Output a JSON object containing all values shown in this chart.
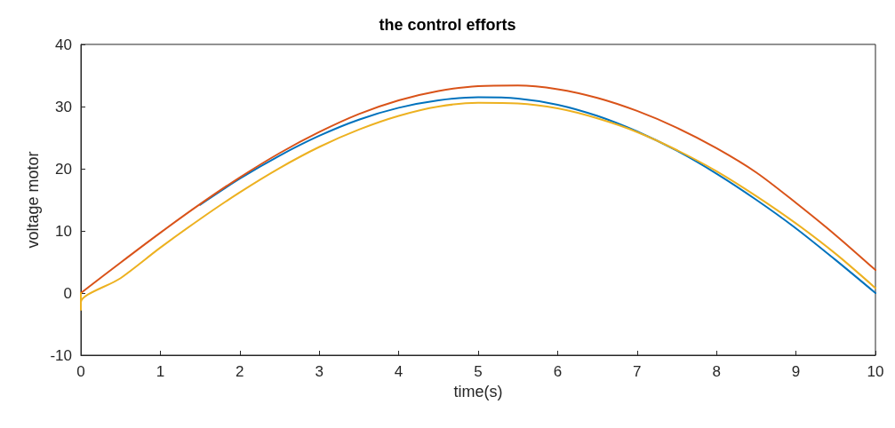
{
  "chart_data": {
    "type": "line",
    "title": "the control efforts",
    "xlabel": "time(s)",
    "ylabel": "voltage motor",
    "x": [
      0,
      0.5,
      1,
      1.5,
      2,
      2.5,
      3,
      3.5,
      4,
      4.5,
      5,
      5.5,
      6,
      6.5,
      7,
      7.5,
      8,
      8.5,
      9,
      9.5,
      10
    ],
    "series": [
      {
        "color": "#0072bd",
        "values": [
          null,
          null,
          null,
          14.2,
          18.4,
          22.1,
          25.3,
          27.9,
          29.8,
          31.0,
          31.5,
          31.3,
          30.3,
          28.5,
          26.0,
          22.9,
          19.2,
          15.0,
          10.4,
          5.3,
          0
        ]
      },
      {
        "color": "#d95319",
        "values": [
          0,
          4.9,
          9.7,
          14.3,
          18.6,
          22.5,
          25.9,
          28.8,
          31.0,
          32.5,
          33.3,
          33.4,
          32.8,
          31.4,
          29.3,
          26.6,
          23.3,
          19.4,
          14.5,
          9.3,
          3.7
        ]
      },
      {
        "color": "#edb120",
        "x": [
          0,
          0,
          0,
          0.5,
          1,
          1.5,
          2,
          2.5,
          3,
          3.5,
          4,
          4.5,
          5,
          5.5,
          6,
          6.5,
          7,
          7.5,
          8,
          8.5,
          9,
          9.5,
          10
        ],
        "values": [
          0,
          -2.7,
          -1.5,
          2.4,
          7.3,
          11.9,
          16.2,
          20.1,
          23.5,
          26.3,
          28.5,
          30.0,
          30.6,
          30.5,
          29.7,
          28.1,
          25.9,
          23.0,
          19.6,
          15.6,
          11.2,
          6.3,
          0.8
        ]
      }
    ],
    "xlim": [
      0,
      10
    ],
    "xticks": [
      0,
      1,
      2,
      3,
      4,
      5,
      6,
      7,
      8,
      9,
      10
    ],
    "ylim": [
      -10,
      40
    ],
    "yticks": [
      -10,
      0,
      10,
      20,
      30,
      40
    ],
    "grid": false,
    "marker": "none",
    "line_style": "solid"
  }
}
